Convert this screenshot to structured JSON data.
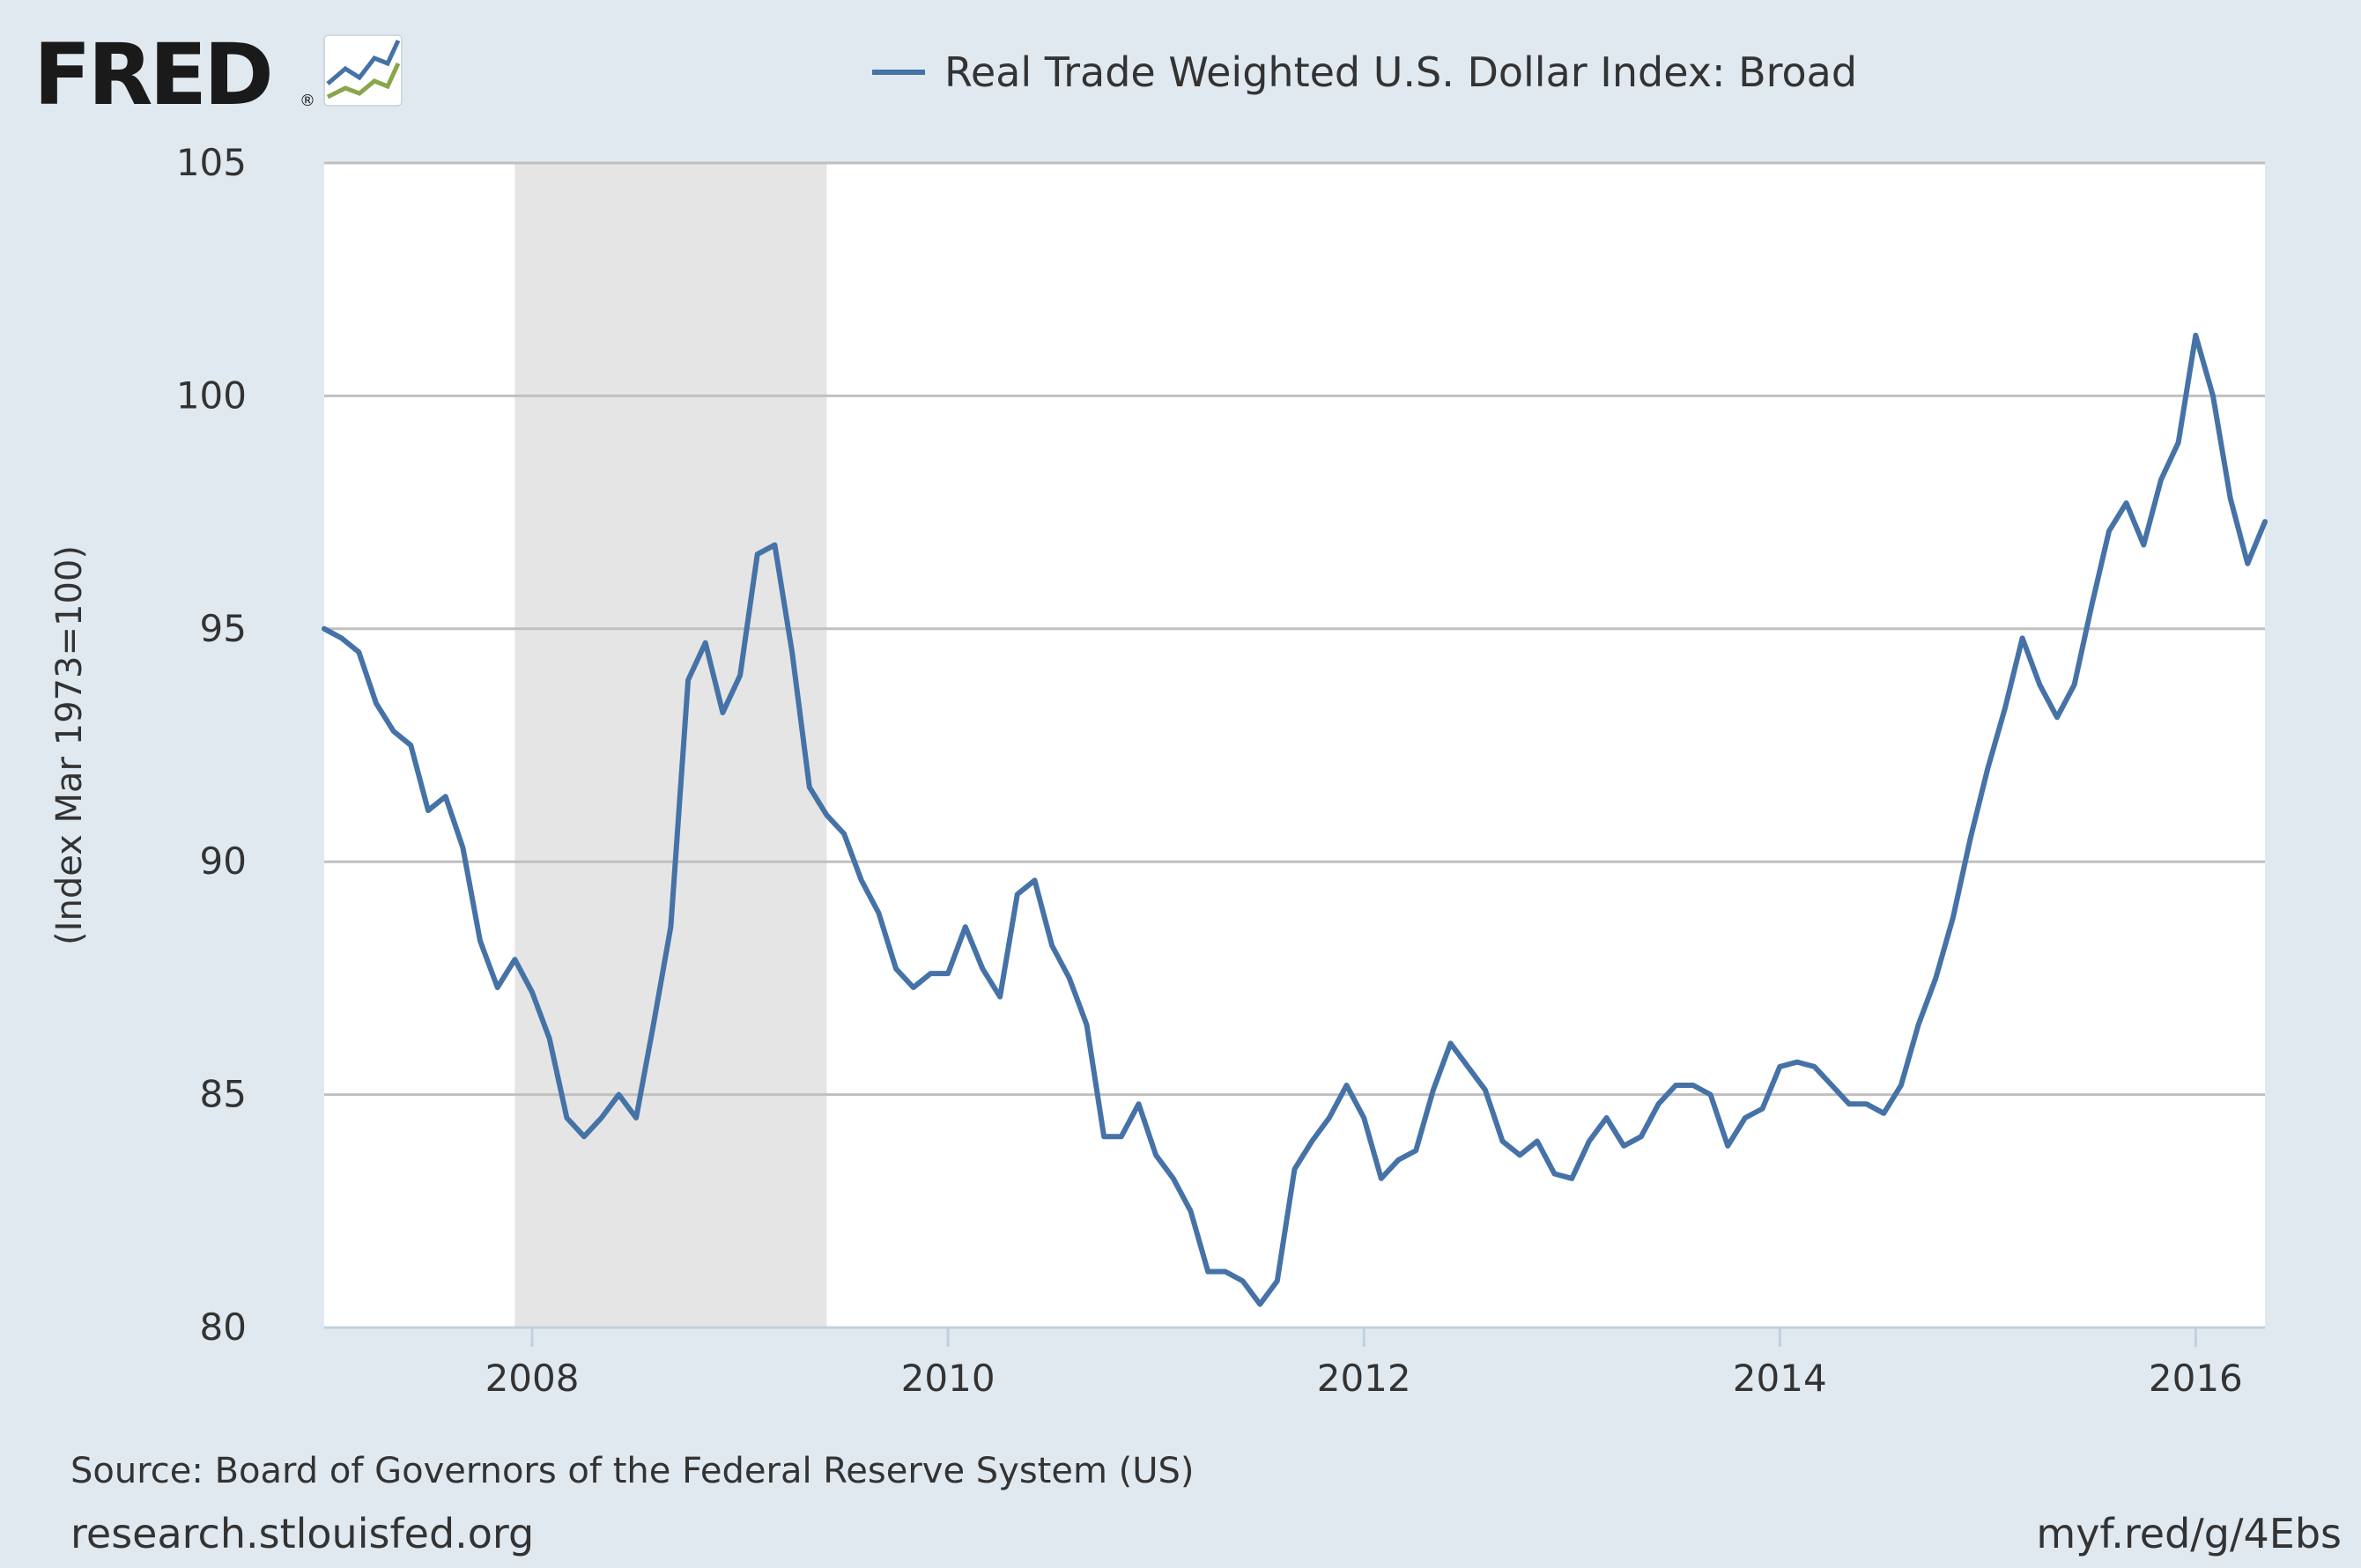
{
  "logo": {
    "text": "FRED",
    "registered": "®",
    "colors": {
      "text": "#1a1a1a",
      "line_blue": "#4572a7",
      "line_green": "#89a54e"
    }
  },
  "chart_data": {
    "type": "line",
    "title": "",
    "series": [
      {
        "name": "Real Trade Weighted U.S. Dollar Index: Broad",
        "color": "#4572a7",
        "x": [
          "2007-01",
          "2007-02",
          "2007-03",
          "2007-04",
          "2007-05",
          "2007-06",
          "2007-07",
          "2007-08",
          "2007-09",
          "2007-10",
          "2007-11",
          "2007-12",
          "2008-01",
          "2008-02",
          "2008-03",
          "2008-04",
          "2008-05",
          "2008-06",
          "2008-07",
          "2008-08",
          "2008-09",
          "2008-10",
          "2008-11",
          "2008-12",
          "2009-01",
          "2009-02",
          "2009-03",
          "2009-04",
          "2009-05",
          "2009-06",
          "2009-07",
          "2009-08",
          "2009-09",
          "2009-10",
          "2009-11",
          "2009-12",
          "2010-01",
          "2010-02",
          "2010-03",
          "2010-04",
          "2010-05",
          "2010-06",
          "2010-07",
          "2010-08",
          "2010-09",
          "2010-10",
          "2010-11",
          "2010-12",
          "2011-01",
          "2011-02",
          "2011-03",
          "2011-04",
          "2011-05",
          "2011-06",
          "2011-07",
          "2011-08",
          "2011-09",
          "2011-10",
          "2011-11",
          "2011-12",
          "2012-01",
          "2012-02",
          "2012-03",
          "2012-04",
          "2012-05",
          "2012-06",
          "2012-07",
          "2012-08",
          "2012-09",
          "2012-10",
          "2012-11",
          "2012-12",
          "2013-01",
          "2013-02",
          "2013-03",
          "2013-04",
          "2013-05",
          "2013-06",
          "2013-07",
          "2013-08",
          "2013-09",
          "2013-10",
          "2013-11",
          "2013-12",
          "2014-01",
          "2014-02",
          "2014-03",
          "2014-04",
          "2014-05",
          "2014-06",
          "2014-07",
          "2014-08",
          "2014-09",
          "2014-10",
          "2014-11",
          "2014-12",
          "2015-01",
          "2015-02",
          "2015-03",
          "2015-04",
          "2015-05",
          "2015-06",
          "2015-07",
          "2015-08",
          "2015-09",
          "2015-10",
          "2015-11",
          "2015-12",
          "2016-01",
          "2016-02",
          "2016-03",
          "2016-04",
          "2016-05"
        ],
        "y": [
          95.0,
          94.8,
          94.5,
          93.4,
          92.8,
          92.5,
          91.1,
          91.4,
          90.3,
          88.3,
          87.3,
          87.9,
          87.2,
          86.2,
          84.5,
          84.1,
          84.5,
          85.0,
          84.5,
          86.5,
          88.6,
          93.9,
          94.7,
          93.2,
          94.0,
          96.6,
          96.8,
          94.5,
          91.6,
          91.0,
          90.6,
          89.6,
          88.9,
          87.7,
          87.3,
          87.6,
          87.6,
          88.6,
          87.7,
          87.1,
          89.3,
          89.6,
          88.2,
          87.5,
          86.5,
          84.1,
          84.1,
          84.8,
          83.7,
          83.2,
          82.5,
          81.2,
          81.2,
          81.0,
          80.5,
          81.0,
          83.4,
          84.0,
          84.5,
          85.2,
          84.5,
          83.2,
          83.6,
          83.8,
          85.1,
          86.1,
          85.6,
          85.1,
          84.0,
          83.7,
          84.0,
          83.3,
          83.2,
          84.0,
          84.5,
          83.9,
          84.1,
          84.8,
          85.2,
          85.2,
          85.0,
          83.9,
          84.5,
          84.7,
          85.6,
          85.7,
          85.6,
          85.2,
          84.8,
          84.8,
          84.6,
          85.2,
          86.5,
          87.5,
          88.8,
          90.5,
          92.0,
          93.3,
          94.8,
          93.8,
          93.1,
          93.8,
          95.5,
          97.1,
          97.7,
          96.8,
          98.2,
          99.0,
          101.3,
          100.0,
          97.8,
          96.4,
          97.3
        ]
      }
    ],
    "recessions": [
      {
        "start": "2007-12",
        "end": "2009-06"
      }
    ],
    "xlabel": "",
    "ylabel": "(Index Mar 1973=100)",
    "x_ticks": [
      "2008",
      "2010",
      "2012",
      "2014",
      "2016"
    ],
    "y_ticks": [
      80,
      85,
      90,
      95,
      100,
      105
    ],
    "ylim": [
      80,
      105
    ],
    "xlim": [
      "2007-01",
      "2016-05"
    ],
    "grid": "horizontal",
    "legend_position": "top-center",
    "colors": {
      "plot_bg": "#ffffff",
      "page_bg": "#e1e9f0",
      "gridline": "#c0c0c0",
      "recession_shade": "#e5e5e5"
    }
  },
  "footer": {
    "source": "Source: Board of Governors of the Federal Reserve System (US)",
    "site": "research.stlouisfed.org",
    "short_url": "myf.red/g/4Ebs"
  }
}
